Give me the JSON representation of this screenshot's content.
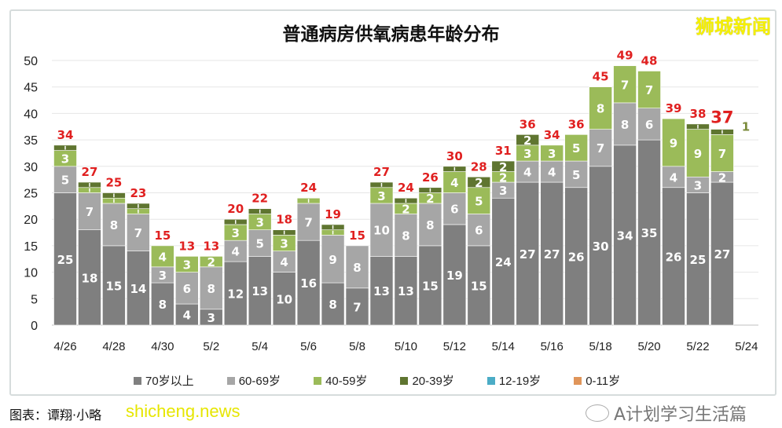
{
  "brand": "狮城新闻",
  "caption": "图表：谭翔·小略",
  "site_watermark": "shicheng.news",
  "wechat_watermark": "A计划学习生活篇",
  "chart_data": {
    "type": "bar",
    "stacked": true,
    "title": "普通病房供氧病患年龄分布",
    "xlabel": "",
    "ylabel": "",
    "ylim": [
      0,
      50
    ],
    "yticks": [
      0,
      5,
      10,
      15,
      20,
      25,
      30,
      35,
      40,
      45,
      50
    ],
    "grid": true,
    "legend_position": "bottom",
    "categories": [
      "4/26",
      "4/27",
      "4/28",
      "4/29",
      "4/30",
      "5/1",
      "5/2",
      "5/3",
      "5/4",
      "5/5",
      "5/6",
      "5/7",
      "5/8",
      "5/9",
      "5/10",
      "5/11",
      "5/12",
      "5/13",
      "5/14",
      "5/15",
      "5/16",
      "5/17",
      "5/18",
      "5/19",
      "5/20",
      "5/21",
      "5/22",
      "5/23",
      "5/24"
    ],
    "xtick_labels": [
      "4/26",
      "4/28",
      "4/30",
      "5/2",
      "5/4",
      "5/6",
      "5/8",
      "5/10",
      "5/12",
      "5/14",
      "5/16",
      "5/18",
      "5/20",
      "5/22",
      "5/24"
    ],
    "series": [
      {
        "name": "70岁以上",
        "color": "#7f7f7f",
        "values": [
          25,
          18,
          15,
          14,
          8,
          4,
          3,
          12,
          13,
          10,
          16,
          8,
          7,
          13,
          13,
          15,
          19,
          15,
          24,
          27,
          27,
          26,
          30,
          34,
          35,
          26,
          25,
          27,
          null
        ]
      },
      {
        "name": "60-69岁",
        "color": "#a6a6a6",
        "values": [
          5,
          7,
          8,
          7,
          3,
          6,
          8,
          4,
          5,
          4,
          7,
          9,
          8,
          10,
          8,
          8,
          6,
          6,
          3,
          4,
          4,
          5,
          7,
          8,
          6,
          4,
          3,
          2,
          null
        ]
      },
      {
        "name": "40-59岁",
        "color": "#9bbb59",
        "values": [
          3,
          1,
          1,
          1,
          4,
          3,
          2,
          3,
          3,
          3,
          1,
          1,
          0,
          3,
          2,
          2,
          4,
          5,
          2,
          3,
          3,
          5,
          8,
          7,
          7,
          9,
          9,
          7,
          null
        ]
      },
      {
        "name": "20-39岁",
        "color": "#5f7530",
        "values": [
          1,
          1,
          1,
          1,
          0,
          0,
          0,
          1,
          1,
          1,
          0,
          1,
          0,
          1,
          1,
          1,
          1,
          2,
          2,
          2,
          0,
          0,
          0,
          0,
          0,
          0,
          1,
          1,
          null
        ]
      },
      {
        "name": "12-19岁",
        "color": "#4bacc6",
        "values": [
          0,
          0,
          0,
          0,
          0,
          0,
          0,
          0,
          0,
          0,
          0,
          0,
          0,
          0,
          0,
          0,
          0,
          0,
          0,
          0,
          0,
          0,
          0,
          0,
          0,
          0,
          0,
          0,
          null
        ]
      },
      {
        "name": "0-11岁",
        "color": "#e0955a",
        "values": [
          0,
          0,
          0,
          0,
          0,
          0,
          0,
          0,
          0,
          0,
          0,
          0,
          0,
          0,
          0,
          0,
          0,
          0,
          0,
          0,
          0,
          0,
          0,
          0,
          0,
          0,
          0,
          0,
          null
        ]
      }
    ],
    "totals": [
      34,
      27,
      25,
      23,
      15,
      13,
      13,
      20,
      22,
      18,
      24,
      19,
      15,
      27,
      24,
      26,
      30,
      28,
      31,
      36,
      34,
      36,
      45,
      49,
      48,
      39,
      38,
      37,
      null
    ],
    "total_label_color": "#e02020",
    "annotation": "1"
  }
}
